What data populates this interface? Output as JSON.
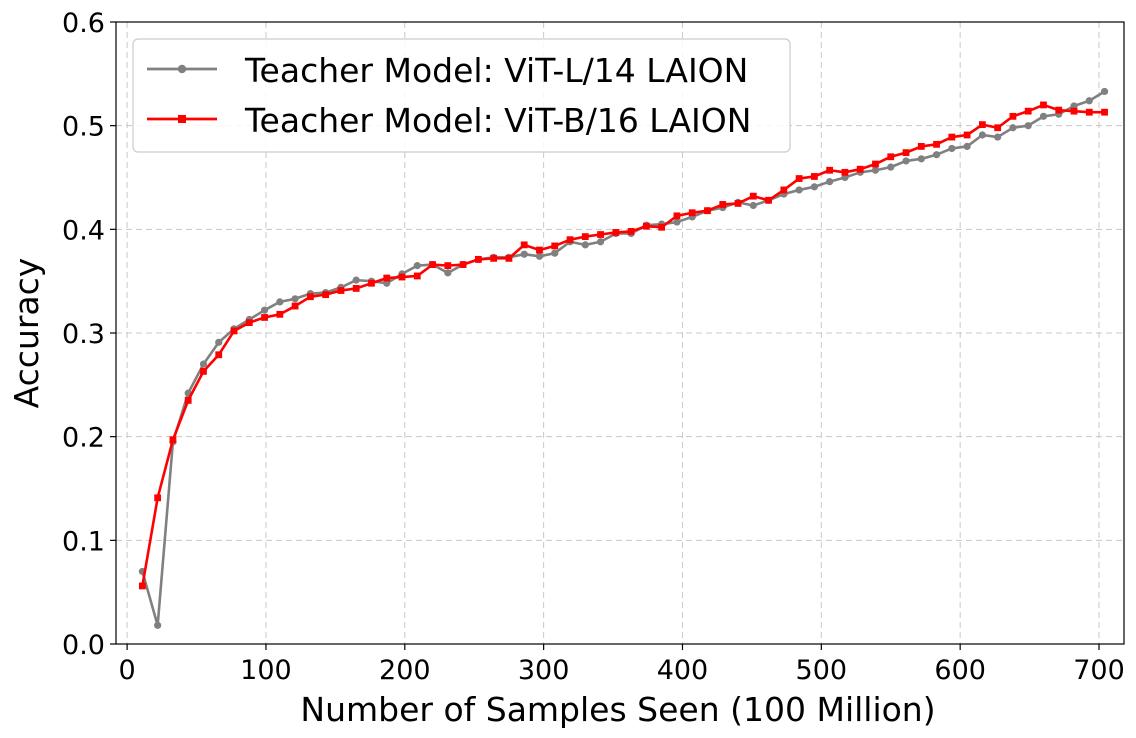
{
  "chart_data": {
    "type": "line",
    "title": "",
    "xlabel": "Number of Samples Seen (100 Million)",
    "ylabel": "Accuracy",
    "xlim": [
      -8,
      718
    ],
    "ylim": [
      0.0,
      0.6
    ],
    "xticks": [
      0,
      100,
      200,
      300,
      400,
      500,
      600,
      700
    ],
    "xtick_labels": [
      "0",
      "100",
      "200",
      "300",
      "400",
      "500",
      "600",
      "700"
    ],
    "yticks": [
      0.0,
      0.1,
      0.2,
      0.3,
      0.4,
      0.5,
      0.6
    ],
    "ytick_labels": [
      "0.0",
      "0.1",
      "0.2",
      "0.3",
      "0.4",
      "0.5",
      "0.6"
    ],
    "grid": true,
    "legend_position": "top-left",
    "x": [
      11,
      22,
      33,
      44,
      55,
      66,
      77,
      88,
      99,
      110,
      121,
      132,
      143,
      154,
      165,
      176,
      187,
      198,
      209,
      220,
      231,
      242,
      253,
      264,
      275,
      286,
      297,
      308,
      319,
      330,
      341,
      352,
      363,
      374,
      385,
      396,
      407,
      418,
      429,
      440,
      451,
      462,
      473,
      484,
      495,
      506,
      517,
      528,
      539,
      550,
      561,
      572,
      583,
      594,
      605,
      616,
      627,
      638,
      649,
      660,
      671,
      682,
      693,
      704
    ],
    "series": [
      {
        "name": "Teacher Model: ViT-L/14 LAION",
        "color": "#808080",
        "marker": "circle",
        "values": [
          0.07,
          0.018,
          0.195,
          0.242,
          0.27,
          0.291,
          0.304,
          0.313,
          0.322,
          0.33,
          0.333,
          0.338,
          0.339,
          0.344,
          0.351,
          0.35,
          0.348,
          0.357,
          0.365,
          0.366,
          0.358,
          0.366,
          0.371,
          0.373,
          0.373,
          0.376,
          0.374,
          0.377,
          0.388,
          0.385,
          0.388,
          0.396,
          0.396,
          0.404,
          0.405,
          0.407,
          0.412,
          0.418,
          0.421,
          0.426,
          0.423,
          0.428,
          0.434,
          0.438,
          0.441,
          0.446,
          0.45,
          0.455,
          0.457,
          0.46,
          0.466,
          0.468,
          0.472,
          0.478,
          0.48,
          0.491,
          0.489,
          0.498,
          0.5,
          0.509,
          0.511,
          0.519,
          0.524,
          0.533
        ]
      },
      {
        "name": "Teacher Model: ViT-B/16 LAION",
        "color": "#ff0000",
        "marker": "square",
        "values": [
          0.056,
          0.141,
          0.197,
          0.235,
          0.263,
          0.279,
          0.302,
          0.31,
          0.315,
          0.318,
          0.326,
          0.335,
          0.337,
          0.341,
          0.343,
          0.348,
          0.353,
          0.354,
          0.355,
          0.366,
          0.365,
          0.366,
          0.371,
          0.372,
          0.372,
          0.385,
          0.38,
          0.384,
          0.39,
          0.393,
          0.395,
          0.397,
          0.398,
          0.403,
          0.402,
          0.413,
          0.416,
          0.418,
          0.424,
          0.425,
          0.432,
          0.428,
          0.438,
          0.449,
          0.451,
          0.457,
          0.455,
          0.458,
          0.463,
          0.47,
          0.474,
          0.48,
          0.482,
          0.489,
          0.491,
          0.501,
          0.498,
          0.509,
          0.514,
          0.52,
          0.515,
          0.514,
          0.513,
          0.513
        ]
      }
    ]
  }
}
